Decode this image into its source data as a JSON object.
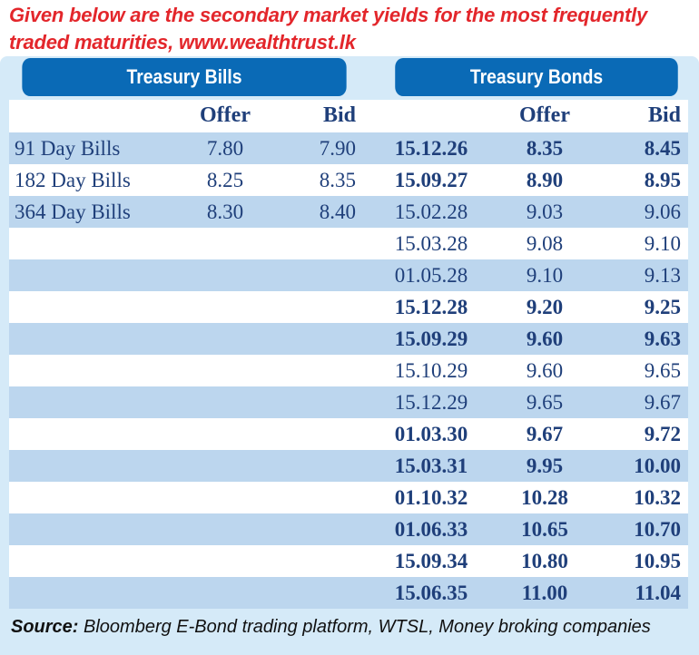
{
  "title": {
    "line1": "Given below are the secondary market yields for the most frequently",
    "line2": "traded maturities, www.wealthtrust.lk"
  },
  "colors": {
    "title": "#e3262b",
    "header": "#0a6ab6",
    "shade": "#bcd6ee",
    "panel": "#d5eaf8",
    "text": "#1f3f7a"
  },
  "bills": {
    "heading": "Treasury Bills",
    "columns": {
      "offer": "Offer",
      "bid": "Bid"
    },
    "rows": [
      {
        "name": "91 Day Bills",
        "offer": "7.80",
        "bid": "7.90"
      },
      {
        "name": "182 Day Bills",
        "offer": "8.25",
        "bid": "8.35"
      },
      {
        "name": "364 Day Bills",
        "offer": "8.30",
        "bid": "8.40"
      }
    ]
  },
  "bonds": {
    "heading": "Treasury Bonds",
    "columns": {
      "offer": "Offer",
      "bid": "Bid"
    },
    "rows": [
      {
        "maturity": "15.12.26",
        "offer": "8.35",
        "bid": "8.45",
        "bold": true
      },
      {
        "maturity": "15.09.27",
        "offer": "8.90",
        "bid": "8.95",
        "bold": true
      },
      {
        "maturity": "15.02.28",
        "offer": "9.03",
        "bid": "9.06",
        "bold": false
      },
      {
        "maturity": "15.03.28",
        "offer": "9.08",
        "bid": "9.10",
        "bold": false
      },
      {
        "maturity": "01.05.28",
        "offer": "9.10",
        "bid": "9.13",
        "bold": false
      },
      {
        "maturity": "15.12.28",
        "offer": "9.20",
        "bid": "9.25",
        "bold": true
      },
      {
        "maturity": "15.09.29",
        "offer": "9.60",
        "bid": "9.63",
        "bold": true
      },
      {
        "maturity": "15.10.29",
        "offer": "9.60",
        "bid": "9.65",
        "bold": false
      },
      {
        "maturity": "15.12.29",
        "offer": "9.65",
        "bid": "9.67",
        "bold": false
      },
      {
        "maturity": "01.03.30",
        "offer": "9.67",
        "bid": "9.72",
        "bold": true
      },
      {
        "maturity": "15.03.31",
        "offer": "9.95",
        "bid": "10.00",
        "bold": true
      },
      {
        "maturity": "01.10.32",
        "offer": "10.28",
        "bid": "10.32",
        "bold": true
      },
      {
        "maturity": "01.06.33",
        "offer": "10.65",
        "bid": "10.70",
        "bold": true
      },
      {
        "maturity": "15.09.34",
        "offer": "10.80",
        "bid": "10.95",
        "bold": true
      },
      {
        "maturity": "15.06.35",
        "offer": "11.00",
        "bid": "11.04",
        "bold": true
      }
    ]
  },
  "source": {
    "label": "Source:",
    "text": " Bloomberg E-Bond trading platform, WTSL, Money broking companies"
  }
}
